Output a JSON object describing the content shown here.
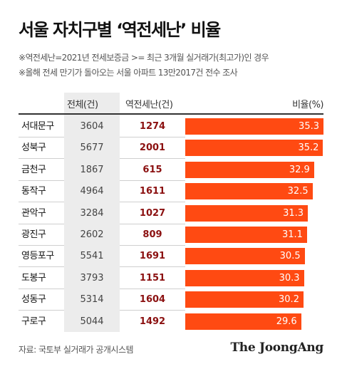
{
  "title": "서울 자치구별 ‘역전세난’ 비율",
  "notes": [
    "※역전세난=2021년 전세보증금 >= 최근 3개월 실거래가(최고가)인 경우",
    "※올해 전세 만기가 돌아오는 서울 아파트 13만2017건 전수 조사"
  ],
  "source": "자료: 국토부 실거래가 공개시스템",
  "logo": "The JoongAng",
  "colors": {
    "bar": "#ff4a12",
    "reversal_text": "#8b1010",
    "total_bg": "#ececec"
  },
  "chart_data": {
    "type": "table",
    "columns": [
      "전체(건)",
      "역전세난(건)",
      "비율(%)"
    ],
    "rows": [
      {
        "district": "서대문구",
        "total": 3604,
        "reversal": 1274,
        "ratio": 35.3
      },
      {
        "district": "성북구",
        "total": 5677,
        "reversal": 2001,
        "ratio": 35.2
      },
      {
        "district": "금천구",
        "total": 1867,
        "reversal": 615,
        "ratio": 32.9
      },
      {
        "district": "동작구",
        "total": 4964,
        "reversal": 1611,
        "ratio": 32.5
      },
      {
        "district": "관악구",
        "total": 3284,
        "reversal": 1027,
        "ratio": 31.3
      },
      {
        "district": "광진구",
        "total": 2602,
        "reversal": 809,
        "ratio": 31.1
      },
      {
        "district": "영등포구",
        "total": 5541,
        "reversal": 1691,
        "ratio": 30.5
      },
      {
        "district": "도봉구",
        "total": 3793,
        "reversal": 1151,
        "ratio": 30.3
      },
      {
        "district": "성동구",
        "total": 5314,
        "reversal": 1604,
        "ratio": 30.2
      },
      {
        "district": "구로구",
        "total": 5044,
        "reversal": 1492,
        "ratio": 29.6
      }
    ]
  }
}
